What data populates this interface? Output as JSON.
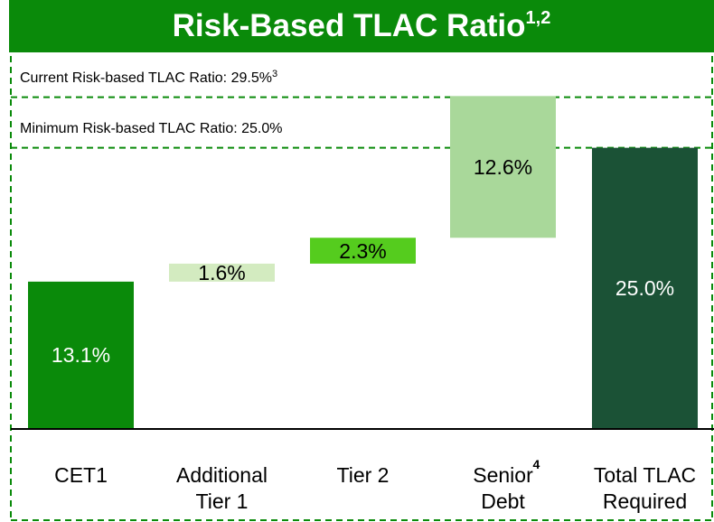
{
  "chart_data": {
    "type": "waterfall",
    "title": "Risk-Based TLAC Ratio",
    "title_note": "1,2",
    "categories": [
      "CET1",
      "Additional\nTier 1",
      "Tier 2",
      "Senior\nDebt",
      "Total TLAC\nRequired"
    ],
    "category_notes": [
      null,
      null,
      null,
      "4",
      null
    ],
    "values": [
      13.1,
      1.6,
      2.3,
      12.6,
      25.0
    ],
    "value_labels": [
      "13.1%",
      "1.6%",
      "2.3%",
      "12.6%",
      "25.0%"
    ],
    "is_total": [
      false,
      false,
      false,
      false,
      true
    ],
    "colors": [
      "#0a8a0a",
      "#d3ebc0",
      "#55cc1e",
      "#a9d89a",
      "#1b5236"
    ],
    "ylim": [
      0,
      33
    ],
    "reference_lines": [
      {
        "label": "Current Risk-based TLAC Ratio: 29.5%",
        "note": "3",
        "value": 29.5,
        "color": "#0a8a0a"
      },
      {
        "label": "Minimum Risk-based TLAC Ratio: 25.0%",
        "value": 25.0,
        "color": "#0a8a0a"
      }
    ]
  }
}
